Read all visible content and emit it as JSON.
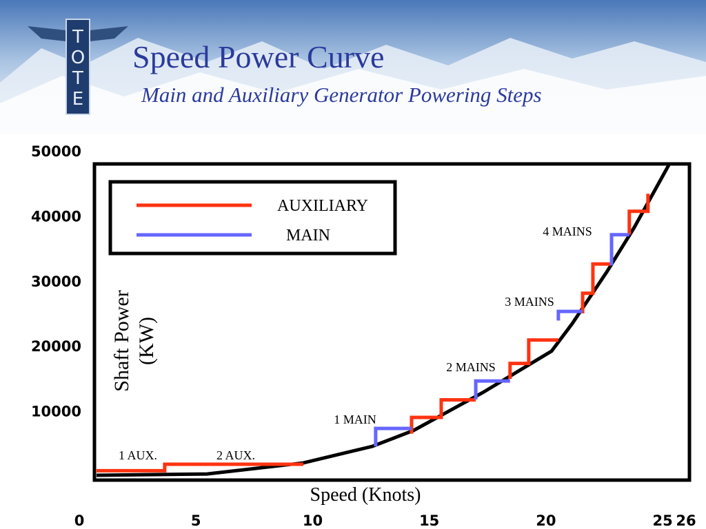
{
  "logo": [
    "T",
    "O",
    "T",
    "E"
  ],
  "chart_data": {
    "type": "line",
    "title": "Speed Power Curve",
    "subtitle": "Main and Auxiliary Generator Powering Steps",
    "xlabel": "Speed (Knots)",
    "ylabel": [
      "Shaft Power",
      "(KW)"
    ],
    "xlim": [
      0,
      26
    ],
    "xticks": [
      0,
      5,
      10,
      15,
      20,
      25,
      26
    ],
    "ylim": [
      0,
      50000
    ],
    "yticks": [
      10000,
      20000,
      30000,
      40000,
      50000
    ],
    "grid": false,
    "legend": "upper left",
    "series": [
      {
        "name": "AUXILIARY",
        "color": "#ff3311",
        "x": [
          0.65,
          3.66,
          3.66,
          9.6,
          null,
          14.24,
          14.24,
          15.51,
          15.51,
          16.99,
          null,
          18.46,
          18.46,
          19.26,
          19.26,
          20.53,
          null,
          21.57,
          21.57,
          22.01,
          22.01,
          22.81,
          null,
          23.57,
          23.57,
          24.37,
          24.37
        ],
        "values": [
          2500,
          2500,
          3500,
          3500,
          null,
          8200,
          10700,
          10700,
          13400,
          13400,
          null,
          16600,
          19000,
          19000,
          22600,
          22600,
          null,
          26700,
          29800,
          29800,
          34300,
          34300,
          null,
          38800,
          42400,
          42400,
          45100
        ]
      },
      {
        "name": "MAIN",
        "color": "#6666ff",
        "x": [
          12.7,
          12.7,
          14.24,
          null,
          16.99,
          16.99,
          18.46,
          null,
          20.53,
          20.53,
          21.57,
          null,
          22.81,
          22.81,
          23.57
        ],
        "values": [
          6250,
          9000,
          9000,
          null,
          13450,
          16300,
          16300,
          null,
          25600,
          27000,
          27000,
          null,
          34100,
          38800,
          38800
        ]
      }
    ],
    "curve": {
      "color": "#000000",
      "x": [
        0.65,
        5.47,
        9.6,
        12.56,
        14.33,
        17.28,
        20.24,
        21.12,
        22.6,
        23.78,
        25.26
      ],
      "values": [
        1800,
        2000,
        3700,
        6250,
        8700,
        14500,
        20900,
        25100,
        33050,
        39900,
        49500
      ]
    },
    "annotations": [
      "1 AUX.",
      "2 AUX.",
      "1 MAIN",
      "2 MAINS",
      "3 MAINS",
      "4 MAINS"
    ]
  }
}
